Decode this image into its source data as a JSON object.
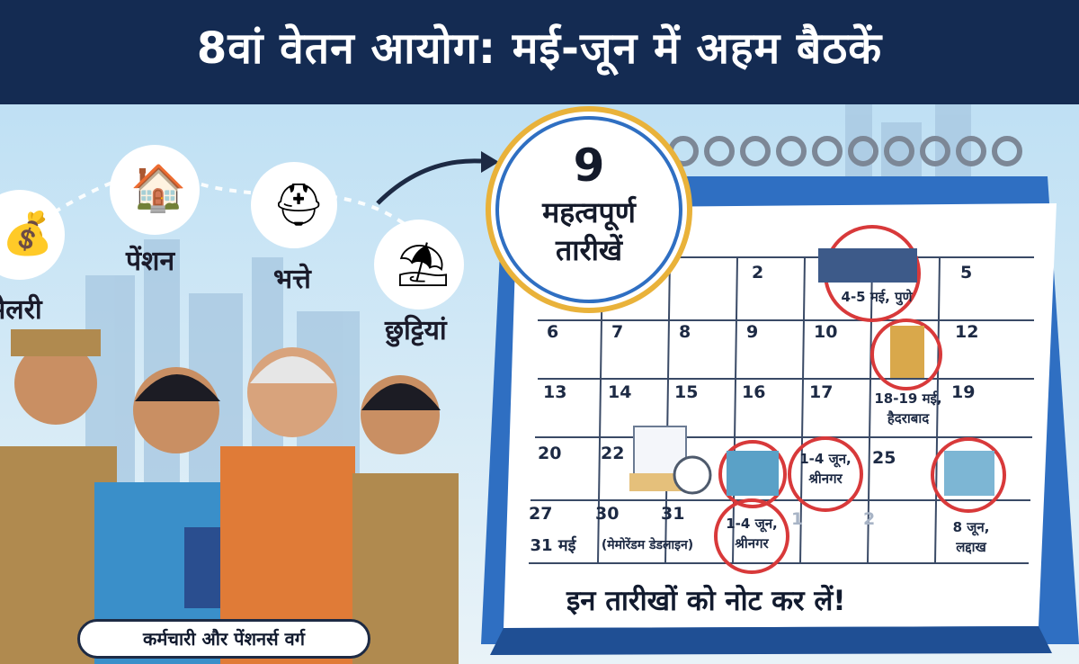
{
  "title": "8वां वेतन आयोग: मई-जून में अहम बैठकें",
  "categories": [
    {
      "label": "सैलरी",
      "icon": "money-bags-icon"
    },
    {
      "label": "पेंशन",
      "icon": "house-icon"
    },
    {
      "label": "भत्ते",
      "icon": "first-aid-icon"
    },
    {
      "label": "छुट्टियां",
      "icon": "beach-umbrella-icon"
    }
  ],
  "badge": {
    "number": "9",
    "line1": "महत्वपूर्ण",
    "line2": "तारीखें"
  },
  "calendar": {
    "rows": [
      [
        "",
        "",
        "",
        "2",
        "",
        "",
        "5"
      ],
      [
        "6",
        "7",
        "8",
        "9",
        "10",
        "",
        "12"
      ],
      [
        "13",
        "14",
        "15",
        "16",
        "17",
        "",
        "19"
      ],
      [
        "20",
        "22",
        "",
        "",
        "",
        "25",
        ""
      ],
      [
        "27",
        "30",
        "31",
        "",
        "1",
        "2",
        ""
      ]
    ],
    "events": {
      "pune": "4-5 मई, पुणे",
      "hyderabad_1": "18-19 मई,",
      "hyderabad_2": "हैदराबाद",
      "srinagar_a1": "1-4 जून,",
      "srinagar_a2": "श्रीनगर",
      "srinagar_b1": "1-4 जून,",
      "srinagar_b2": "श्रीनगर",
      "ladakh_1": "8 जून,",
      "ladakh_2": "लद्दाख",
      "deadline_date": "31 मई",
      "deadline_text": "(मेमोरेंडम डेडलाइन)"
    },
    "note": "इन तारीखों को नोट कर लें!"
  },
  "footer_pill": "कर्मचारी और पेंशनर्स वर्ग",
  "colors": {
    "banner": "#142b52",
    "calendar_blue": "#2f6fc2",
    "marker_red": "#d8393a",
    "badge_ring": "#e9b23a"
  }
}
